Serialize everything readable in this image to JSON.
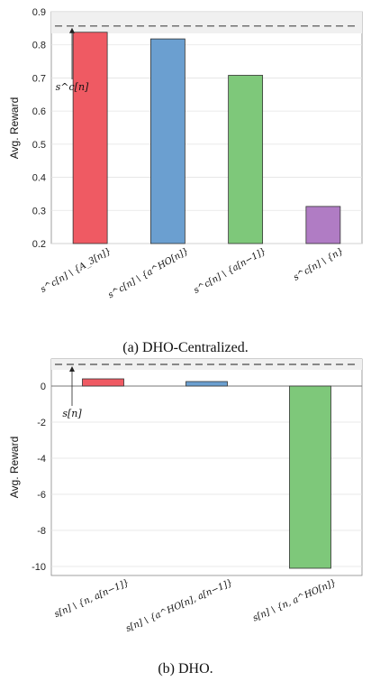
{
  "chart_data": [
    {
      "type": "bar",
      "caption": "(a) DHO-Centralized.",
      "ylabel": "Avg. Reward",
      "xlabel": "",
      "ylim": [
        0.2,
        0.9
      ],
      "yticks": [
        0.2,
        0.3,
        0.4,
        0.5,
        0.6,
        0.7,
        0.8,
        0.9
      ],
      "ytick_labels": [
        "0.2",
        "0.3",
        "0.4",
        "0.5",
        "0.6",
        "0.7",
        "0.8",
        "0.9"
      ],
      "grid": true,
      "categories": [
        "s^c[n] \\ {A_3[n]}",
        "s^c[n] \\ {a^HO[n]}",
        "s^c[n] \\ {a[n−1]}",
        "s^c[n] \\ {n}"
      ],
      "values": [
        0.838,
        0.818,
        0.708,
        0.312
      ],
      "colors": [
        "#ef5a63",
        "#6b9fd0",
        "#7ec87a",
        "#b07cc4"
      ],
      "reference_line": {
        "value": 0.857,
        "label": "s^c[n]"
      }
    },
    {
      "type": "bar",
      "caption": "(b) DHO.",
      "ylabel": "Avg. Reward",
      "xlabel": "",
      "ylim": [
        -10.5,
        1.5
      ],
      "yticks": [
        0,
        -2,
        -4,
        -6,
        -8,
        -10
      ],
      "ytick_labels": [
        "0",
        "-2",
        "-4",
        "-6",
        "-8",
        "-10"
      ],
      "grid": true,
      "categories": [
        "s[n] \\ {n, a[n−1]}",
        "s[n] \\ {a^HO[n], a[n−1]}",
        "s[n] \\ {n, a^HO[n]}"
      ],
      "values": [
        0.4,
        0.25,
        -10.1
      ],
      "colors": [
        "#ef5a63",
        "#6b9fd0",
        "#7ec87a"
      ],
      "reference_line": {
        "value": 1.2,
        "label": "s[n]"
      }
    }
  ]
}
